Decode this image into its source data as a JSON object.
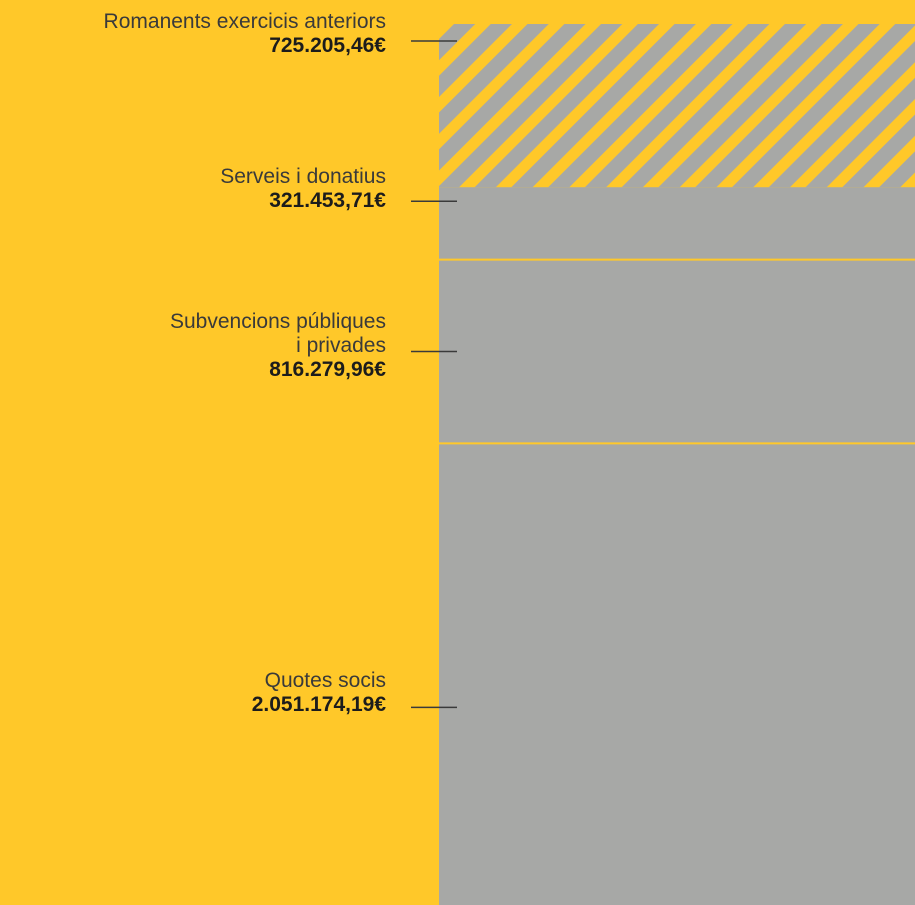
{
  "chart_data": {
    "type": "bar",
    "stacked": true,
    "orientation": "vertical",
    "categories": [
      "Romanents exercicis anteriors",
      "Serveis i donatius",
      "Subvencions públiques i privades",
      "Quotes socis"
    ],
    "name_lines": [
      [
        "Romanents exercicis anteriors"
      ],
      [
        "Serveis i donatius"
      ],
      [
        "Subvencions públiques",
        "i privades"
      ],
      [
        "Quotes socis"
      ]
    ],
    "values": [
      725205.46,
      321453.71,
      816279.96,
      2051174.19
    ],
    "value_labels": [
      "725.205,46€",
      "321.453,71€",
      "816.279,96€",
      "2.051.174,19€"
    ],
    "segment_styles": [
      "hatched",
      "solid",
      "solid",
      "solid"
    ],
    "colors": {
      "background": "#ffc829",
      "segment": "#a7a8a6",
      "divider": "#ffc829",
      "leader": "#3a3a3a"
    }
  }
}
